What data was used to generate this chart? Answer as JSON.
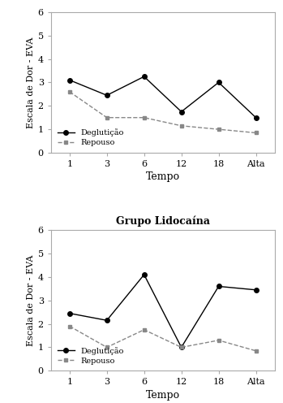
{
  "top_plot": {
    "degluticao": [
      3.1,
      2.45,
      3.25,
      1.75,
      3.0,
      1.5
    ],
    "repouso": [
      2.6,
      1.5,
      1.5,
      1.15,
      1.0,
      0.85
    ],
    "xlabels": [
      "1",
      "3",
      "6",
      "12",
      "18",
      "Alta"
    ],
    "ylabel": "Escala de Dor - EVA",
    "xlabel": "Tempo",
    "ylim": [
      0,
      6
    ],
    "yticks": [
      0,
      1,
      2,
      3,
      4,
      5,
      6
    ]
  },
  "bottom_plot": {
    "title": "Grupo Lidocaína",
    "degluticao": [
      2.45,
      2.15,
      4.1,
      1.0,
      3.6,
      3.45
    ],
    "repouso": [
      1.9,
      1.0,
      1.75,
      1.0,
      1.3,
      0.85
    ],
    "xlabels": [
      "1",
      "3",
      "6",
      "12",
      "18",
      "Alta"
    ],
    "ylabel": "Escala de Dor - EVA",
    "xlabel": "Tempo",
    "ylim": [
      0,
      6
    ],
    "yticks": [
      0,
      1,
      2,
      3,
      4,
      5,
      6
    ]
  },
  "legend_degluticao": "Deglutição",
  "legend_repouso": "Repouso",
  "line_color_degluticao": "#000000",
  "line_color_repouso": "#888888",
  "bg_color": "#ffffff",
  "plot_bg_color": "#ffffff"
}
